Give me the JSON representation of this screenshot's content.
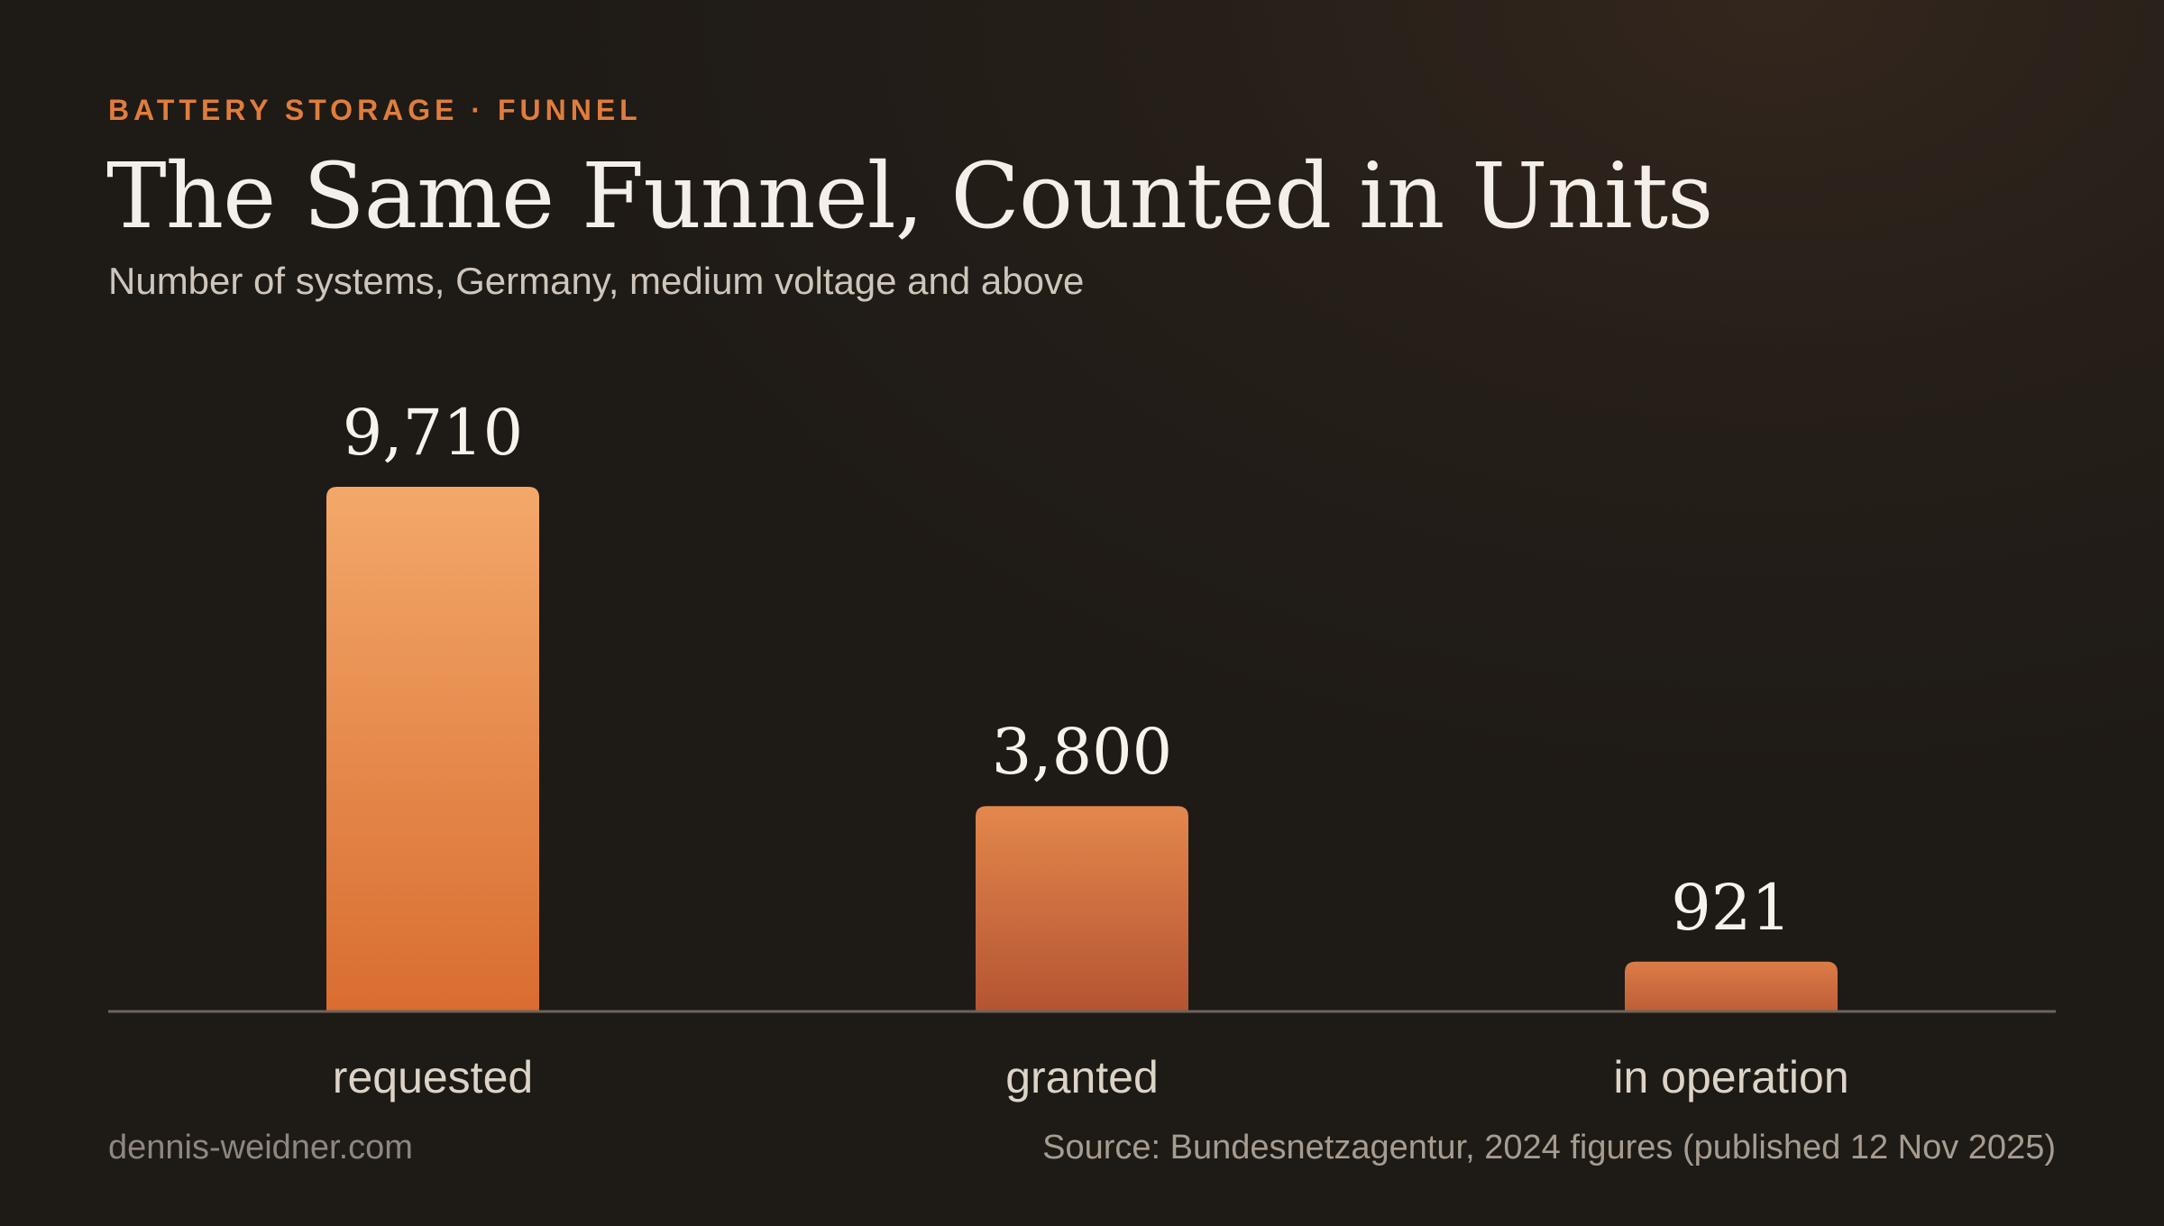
{
  "header": {
    "eyebrow": "BATTERY STORAGE · FUNNEL",
    "title": "The Same Funnel, Counted in Units",
    "subtitle": "Number of systems, Germany, medium voltage and above"
  },
  "footer": {
    "site": "dennis-weidner.com",
    "source": "Source: Bundesnetzagentur, 2024 figures (published 12 Nov 2025)"
  },
  "colors": {
    "accent": "#e07d3e",
    "bar_top": [
      "#f3a86a",
      "#e3884d",
      "#dc7c48"
    ],
    "bar_bottom": [
      "#d96d30",
      "#b35432",
      "#bd5e36"
    ]
  },
  "chart_data": {
    "type": "bar",
    "categories": [
      "requested",
      "granted",
      "in operation"
    ],
    "values": [
      9710,
      3800,
      921
    ],
    "value_labels": [
      "9,710",
      "3,800",
      "921"
    ],
    "ylim": [
      0,
      9710
    ],
    "grid": false,
    "legend": "none"
  }
}
